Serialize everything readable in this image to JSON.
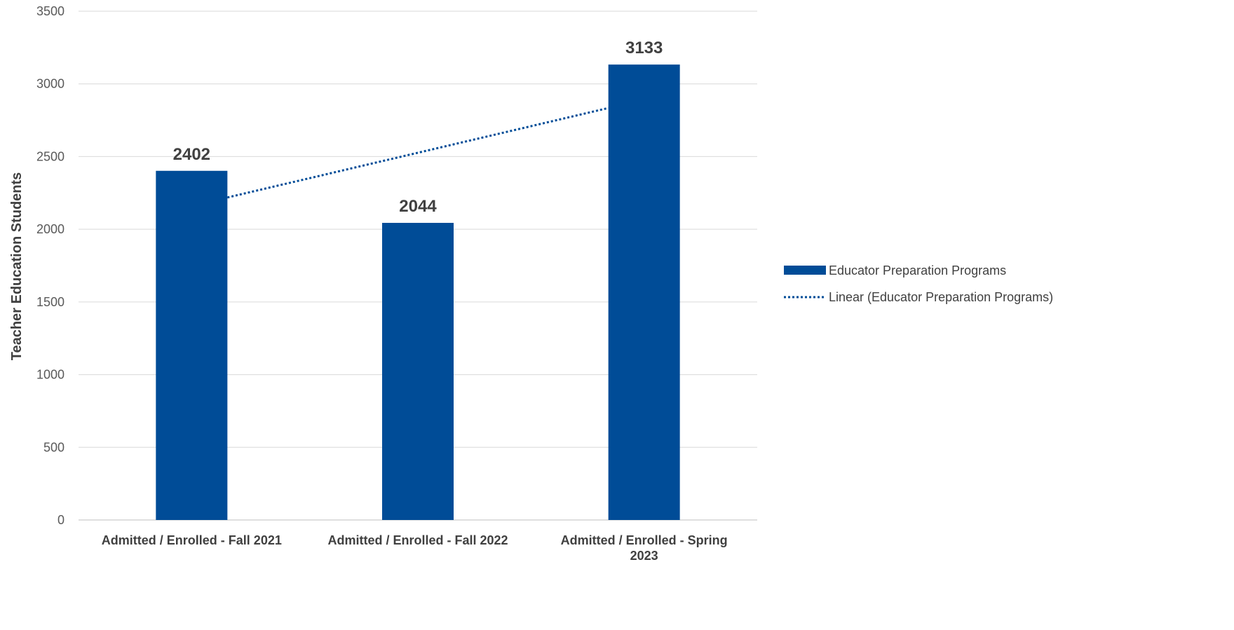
{
  "chart_data": {
    "type": "bar",
    "categories": [
      [
        "Admitted / Enrolled - Fall 2021"
      ],
      [
        "Admitted / Enrolled - Fall 2022"
      ],
      [
        "Admitted / Enrolled - Spring",
        "2023"
      ]
    ],
    "series": [
      {
        "name": "Educator Preparation Programs",
        "values": [
          2402,
          2044,
          3133
        ],
        "color": "#004C97",
        "data_labels": [
          "2402",
          "2044",
          "3133"
        ]
      }
    ],
    "trendline": {
      "name": "Linear (Educator Preparation Programs)",
      "type": "linear",
      "style": "dotted",
      "color": "#004C97"
    },
    "ylabel": "Teacher Education Students",
    "xlabel": "",
    "title": "",
    "ylim": [
      0,
      3500
    ],
    "yticks": [
      0,
      500,
      1000,
      1500,
      2000,
      2500,
      3000,
      3500
    ],
    "grid": true,
    "legend_position": "right"
  }
}
